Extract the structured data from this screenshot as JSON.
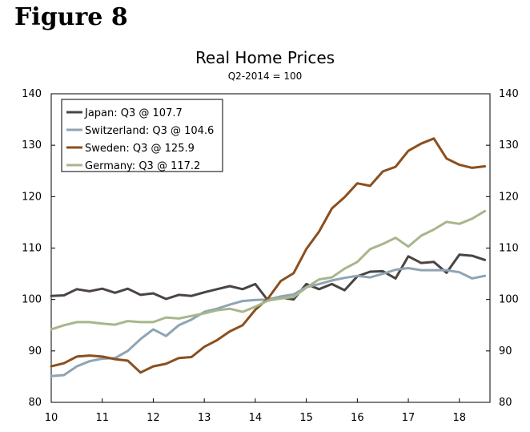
{
  "figure_label": "Figure 8",
  "chart_data": {
    "type": "line",
    "title": "Real Home Prices",
    "subtitle": "Q2-2014 = 100",
    "xlabel": "",
    "ylabel": "",
    "xlim": [
      10,
      18.6
    ],
    "ylim": [
      80,
      140
    ],
    "x_ticks": [
      10,
      11,
      12,
      13,
      14,
      15,
      16,
      17,
      18
    ],
    "y_ticks": [
      80,
      90,
      100,
      110,
      120,
      130,
      140
    ],
    "x_tick_labels": [
      "10",
      "11",
      "12",
      "13",
      "14",
      "15",
      "16",
      "17",
      "18"
    ],
    "y_tick_labels": [
      "80",
      "90",
      "100",
      "110",
      "120",
      "130",
      "140"
    ],
    "grid": false,
    "legend_position": "top-left",
    "x": [
      10.0,
      10.25,
      10.5,
      10.75,
      11.0,
      11.25,
      11.5,
      11.75,
      12.0,
      12.25,
      12.5,
      12.75,
      13.0,
      13.25,
      13.5,
      13.75,
      14.0,
      14.25,
      14.5,
      14.75,
      15.0,
      15.25,
      15.5,
      15.75,
      16.0,
      16.25,
      16.5,
      16.75,
      17.0,
      17.25,
      17.5,
      17.75,
      18.0,
      18.25,
      18.5
    ],
    "series": [
      {
        "name": "Japan",
        "legend": "Japan: Q3 @ 107.7",
        "color": "#4b4542",
        "values": [
          100.7,
          100.8,
          102.0,
          101.6,
          102.1,
          101.3,
          102.1,
          100.9,
          101.2,
          100.1,
          100.9,
          100.7,
          101.4,
          102.0,
          102.6,
          102.0,
          103.0,
          99.8,
          100.4,
          100.0,
          103.0,
          102.0,
          103.0,
          101.8,
          104.5,
          105.4,
          105.5,
          104.1,
          108.4,
          107.1,
          107.3,
          105.2,
          108.7,
          108.5,
          107.7
        ]
      },
      {
        "name": "Switzerland",
        "legend": "Switzerland: Q3 @ 104.6",
        "color": "#8fa4b4",
        "values": [
          85.1,
          85.3,
          87.0,
          88.0,
          88.5,
          88.6,
          90.0,
          92.3,
          94.2,
          92.9,
          95.0,
          96.1,
          97.6,
          98.2,
          99.0,
          99.7,
          99.9,
          100.0,
          100.6,
          101.0,
          102.4,
          103.0,
          103.7,
          104.2,
          104.6,
          104.3,
          105.0,
          105.8,
          106.1,
          105.7,
          105.7,
          105.7,
          105.3,
          104.1,
          104.6
        ]
      },
      {
        "name": "Sweden",
        "legend": "Sweden: Q3 @ 125.9",
        "color": "#8b4f1e",
        "values": [
          87.0,
          87.6,
          88.9,
          89.1,
          88.9,
          88.4,
          88.1,
          85.8,
          87.0,
          87.5,
          88.6,
          88.8,
          90.8,
          92.1,
          93.8,
          95.0,
          98.0,
          100.2,
          103.6,
          105.1,
          109.8,
          113.2,
          117.7,
          119.9,
          122.6,
          122.1,
          124.9,
          125.8,
          128.9,
          130.3,
          131.3,
          127.4,
          126.2,
          125.6,
          125.9
        ]
      },
      {
        "name": "Germany",
        "legend": "Germany: Q3 @ 117.2",
        "color": "#a8b68c",
        "values": [
          94.2,
          95.0,
          95.6,
          95.6,
          95.3,
          95.1,
          95.8,
          95.6,
          95.6,
          96.5,
          96.3,
          96.8,
          97.3,
          97.9,
          98.2,
          97.6,
          98.6,
          99.8,
          100.2,
          100.5,
          102.3,
          103.9,
          104.3,
          106.0,
          107.3,
          109.8,
          110.8,
          112.0,
          110.3,
          112.4,
          113.6,
          115.1,
          114.7,
          115.7,
          117.2
        ]
      }
    ]
  }
}
